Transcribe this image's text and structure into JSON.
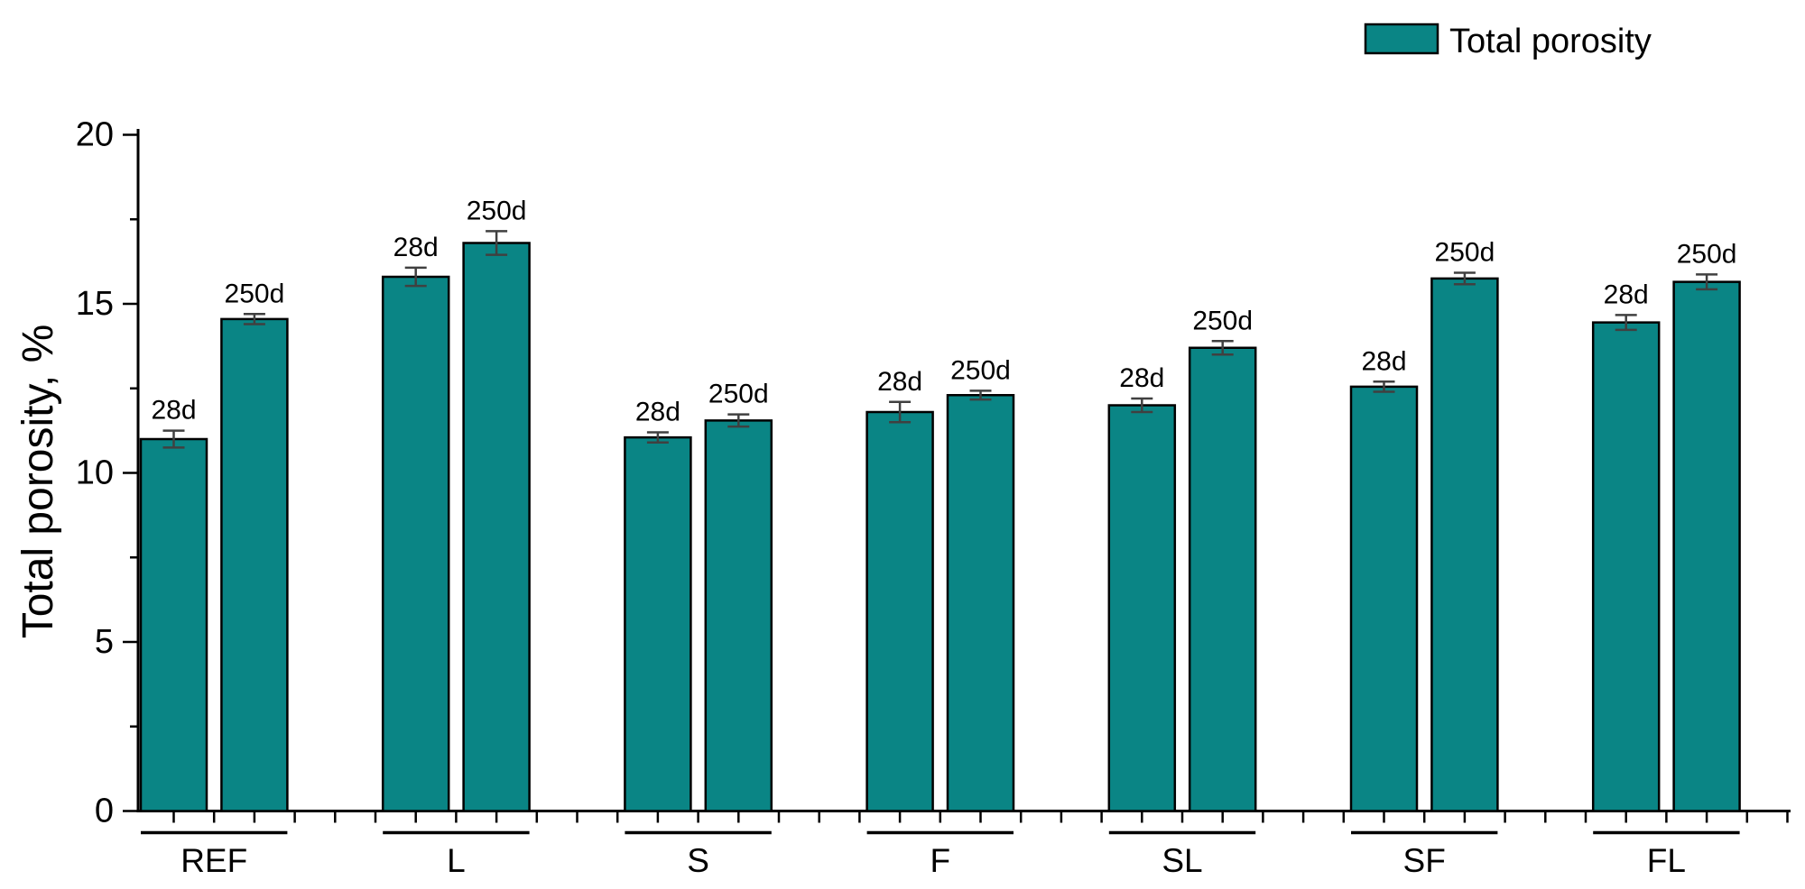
{
  "figure": {
    "background_color": "#ffffff",
    "text_color": "#000000",
    "legend": {
      "label": "Total porosity",
      "swatch_color": "#0a8585",
      "position": "top-right"
    },
    "y_axis": {
      "title": "Total porosity, %",
      "tick_labels": [
        "0",
        "5",
        "10",
        "15",
        "20"
      ]
    },
    "x_axis": {
      "group_labels": [
        "REF",
        "L",
        "S",
        "F",
        "SL",
        "SF",
        "FL"
      ]
    },
    "bar_annotations": [
      "28d",
      "250d"
    ]
  },
  "chart_data": {
    "type": "bar",
    "title": "",
    "xlabel": "",
    "ylabel": "Total porosity, %",
    "ylim": [
      0,
      20
    ],
    "y_major_ticks": [
      0,
      5,
      10,
      15,
      20
    ],
    "y_minor_step": 2.5,
    "grid": false,
    "categories": [
      "REF",
      "L",
      "S",
      "F",
      "SL",
      "SF",
      "FL"
    ],
    "series": [
      {
        "name": "28d",
        "values": [
          11.0,
          15.8,
          11.05,
          11.8,
          12.0,
          12.55,
          14.45
        ],
        "errors": [
          0.25,
          0.27,
          0.15,
          0.3,
          0.2,
          0.15,
          0.22
        ]
      },
      {
        "name": "250d",
        "values": [
          14.55,
          16.8,
          11.55,
          12.3,
          13.7,
          15.75,
          15.65
        ],
        "errors": [
          0.15,
          0.35,
          0.18,
          0.13,
          0.2,
          0.17,
          0.22
        ]
      }
    ],
    "bar_label_style": "series name above each bar",
    "legend_entries": [
      "Total porosity"
    ],
    "legend_position": "top-right",
    "bar_fill": "#0a8585",
    "bar_stroke": "#000000",
    "error_bar_color": "#404040",
    "axis_color": "#000000"
  }
}
